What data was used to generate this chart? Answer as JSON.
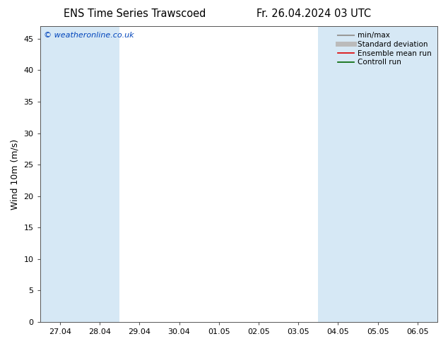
{
  "title_left": "ENS Time Series Trawscoed",
  "title_right": "Fr. 26.04.2024 03 UTC",
  "ylabel": "Wind 10m (m/s)",
  "watermark": "© weatheronline.co.uk",
  "xlim_left": -0.5,
  "xlim_right": 9.5,
  "ylim_bottom": 0,
  "ylim_top": 47,
  "yticks": [
    0,
    5,
    10,
    15,
    20,
    25,
    30,
    35,
    40,
    45
  ],
  "xtick_labels": [
    "27.04",
    "28.04",
    "29.04",
    "30.04",
    "01.05",
    "02.05",
    "03.05",
    "04.05",
    "05.05",
    "06.05"
  ],
  "xtick_positions": [
    0,
    1,
    2,
    3,
    4,
    5,
    6,
    7,
    8,
    9
  ],
  "shaded_bands": [
    [
      -0.5,
      0.5
    ],
    [
      0.5,
      1.5
    ],
    [
      6.5,
      7.5
    ],
    [
      7.5,
      8.5
    ],
    [
      8.5,
      9.5
    ]
  ],
  "shade_color": "#d6e8f5",
  "bg_color": "#ffffff",
  "plot_bg_color": "#ffffff",
  "legend_items": [
    {
      "label": "min/max",
      "color": "#999999",
      "lw": 1.5
    },
    {
      "label": "Standard deviation",
      "color": "#bbbbbb",
      "lw": 5
    },
    {
      "label": "Ensemble mean run",
      "color": "#dd0000",
      "lw": 1.2
    },
    {
      "label": "Controll run",
      "color": "#006600",
      "lw": 1.2
    }
  ],
  "title_fontsize": 10.5,
  "label_fontsize": 9,
  "tick_fontsize": 8,
  "watermark_color": "#0044bb",
  "watermark_fontsize": 8,
  "spine_color": "#555555"
}
